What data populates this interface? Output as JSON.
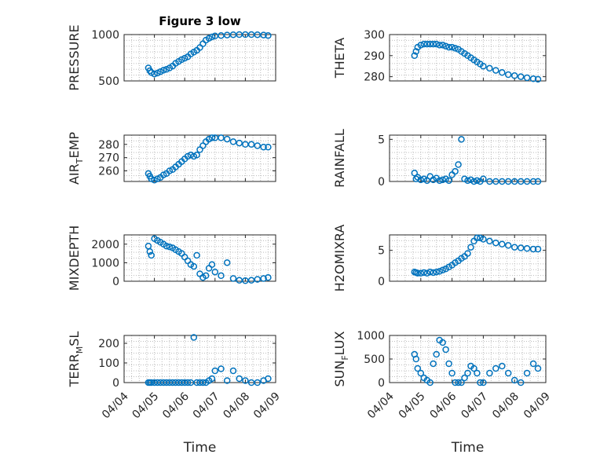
{
  "figure": {
    "title": "Figure 3 low",
    "marker_color": "#0072BD"
  },
  "chart_data": [
    {
      "type": "scatter",
      "title": "Figure 3 low",
      "xlabel": "",
      "ylabel": "PRESSURE",
      "xlim": [
        4,
        9
      ],
      "ylim": [
        500,
        1000
      ],
      "yticks": [
        500,
        1000
      ],
      "x_ticklabels": [],
      "grid": true,
      "x": [
        4.8,
        4.85,
        4.9,
        5.0,
        5.1,
        5.2,
        5.3,
        5.4,
        5.5,
        5.6,
        5.7,
        5.8,
        5.9,
        6.0,
        6.1,
        6.2,
        6.3,
        6.4,
        6.5,
        6.6,
        6.7,
        6.8,
        6.9,
        7.0,
        7.2,
        7.4,
        7.6,
        7.8,
        8.0,
        8.2,
        8.4,
        8.6,
        8.75
      ],
      "y": [
        640,
        610,
        590,
        575,
        585,
        600,
        615,
        625,
        640,
        660,
        690,
        710,
        730,
        745,
        760,
        790,
        810,
        830,
        860,
        900,
        940,
        960,
        975,
        985,
        990,
        995,
        998,
        1000,
        1000,
        1000,
        998,
        995,
        990
      ]
    },
    {
      "type": "scatter",
      "title": "",
      "xlabel": "",
      "ylabel": "THETA",
      "xlim": [
        4,
        9
      ],
      "ylim": [
        278,
        300
      ],
      "yticks": [
        280,
        290,
        300
      ],
      "x_ticklabels": [],
      "grid": true,
      "x": [
        4.8,
        4.85,
        4.9,
        5.0,
        5.1,
        5.2,
        5.3,
        5.4,
        5.5,
        5.6,
        5.7,
        5.8,
        5.9,
        6.0,
        6.1,
        6.2,
        6.3,
        6.4,
        6.5,
        6.6,
        6.7,
        6.8,
        6.9,
        7.0,
        7.2,
        7.4,
        7.6,
        7.8,
        8.0,
        8.2,
        8.4,
        8.6,
        8.75
      ],
      "y": [
        290,
        292,
        294,
        295,
        295.5,
        295.5,
        295.5,
        295.5,
        295.5,
        295,
        295,
        294.5,
        294,
        294,
        293.5,
        293,
        292,
        291,
        290,
        289,
        288,
        287,
        286,
        285,
        284,
        283,
        282,
        281,
        280.5,
        280,
        279.5,
        279,
        278.8
      ]
    },
    {
      "type": "scatter",
      "title": "",
      "xlabel": "",
      "ylabel": "AIR_TEMP",
      "xlim": [
        4,
        9
      ],
      "ylim": [
        252,
        287
      ],
      "yticks": [
        260,
        270,
        280
      ],
      "x_ticklabels": [],
      "grid": true,
      "x": [
        4.8,
        4.85,
        4.9,
        5.0,
        5.1,
        5.2,
        5.3,
        5.4,
        5.5,
        5.6,
        5.7,
        5.8,
        5.9,
        6.0,
        6.1,
        6.2,
        6.3,
        6.4,
        6.5,
        6.6,
        6.7,
        6.8,
        6.9,
        7.0,
        7.2,
        7.4,
        7.6,
        7.8,
        8.0,
        8.2,
        8.4,
        8.6,
        8.75
      ],
      "y": [
        258,
        256,
        254,
        253,
        254,
        255,
        257,
        258,
        260,
        261,
        263,
        265,
        267,
        269,
        271,
        272,
        271,
        272,
        276,
        279,
        282,
        284,
        285,
        285,
        285,
        284,
        282,
        281,
        280,
        280,
        279,
        278,
        278
      ]
    },
    {
      "type": "scatter",
      "title": "",
      "xlabel": "",
      "ylabel": "RAINFALL",
      "xlim": [
        4,
        9
      ],
      "ylim": [
        0,
        5.5
      ],
      "yticks": [
        0,
        5
      ],
      "x_ticklabels": [],
      "grid": true,
      "x": [
        4.8,
        4.85,
        4.9,
        5.0,
        5.1,
        5.2,
        5.3,
        5.4,
        5.5,
        5.6,
        5.7,
        5.8,
        5.9,
        6.0,
        6.1,
        6.2,
        6.3,
        6.4,
        6.5,
        6.6,
        6.7,
        6.8,
        6.9,
        7.0,
        7.2,
        7.4,
        7.6,
        7.8,
        8.0,
        8.2,
        8.4,
        8.6,
        8.75
      ],
      "y": [
        1.0,
        0.3,
        0.5,
        0.2,
        0.3,
        0.1,
        0.6,
        0.2,
        0.4,
        0.1,
        0.2,
        0.3,
        0.1,
        0.8,
        1.2,
        2.0,
        5.0,
        0.3,
        0.1,
        0.2,
        0.0,
        0.1,
        0.0,
        0.3,
        0.0,
        0.0,
        0.0,
        0.0,
        0.0,
        0.0,
        0.0,
        0.0,
        0.0
      ]
    },
    {
      "type": "scatter",
      "title": "",
      "xlabel": "",
      "ylabel": "MIXDEPTH",
      "xlim": [
        4,
        9
      ],
      "ylim": [
        0,
        2500
      ],
      "yticks": [
        0,
        1000,
        2000
      ],
      "x_ticklabels": [],
      "grid": true,
      "x": [
        4.8,
        4.85,
        4.9,
        5.0,
        5.1,
        5.2,
        5.3,
        5.4,
        5.5,
        5.6,
        5.7,
        5.8,
        5.9,
        6.0,
        6.1,
        6.2,
        6.3,
        6.4,
        6.5,
        6.6,
        6.7,
        6.8,
        6.9,
        7.0,
        7.2,
        7.4,
        7.6,
        7.8,
        8.0,
        8.2,
        8.4,
        8.6,
        8.75
      ],
      "y": [
        1900,
        1600,
        1400,
        2300,
        2200,
        2100,
        2000,
        1900,
        1850,
        1800,
        1700,
        1600,
        1500,
        1300,
        1100,
        900,
        800,
        1400,
        400,
        200,
        300,
        700,
        900,
        500,
        300,
        1000,
        150,
        50,
        30,
        50,
        100,
        150,
        200
      ]
    },
    {
      "type": "scatter",
      "title": "",
      "xlabel": "",
      "ylabel": "H2OMIXRA",
      "xlim": [
        4,
        9
      ],
      "ylim": [
        0,
        7.5
      ],
      "yticks": [
        0,
        5
      ],
      "x_ticklabels": [],
      "grid": true,
      "x": [
        4.8,
        4.85,
        4.9,
        5.0,
        5.1,
        5.2,
        5.3,
        5.4,
        5.5,
        5.6,
        5.7,
        5.8,
        5.9,
        6.0,
        6.1,
        6.2,
        6.3,
        6.4,
        6.5,
        6.6,
        6.7,
        6.8,
        6.9,
        7.0,
        7.2,
        7.4,
        7.6,
        7.8,
        8.0,
        8.2,
        8.4,
        8.6,
        8.75
      ],
      "y": [
        1.5,
        1.4,
        1.3,
        1.3,
        1.4,
        1.3,
        1.5,
        1.4,
        1.5,
        1.6,
        1.8,
        2.0,
        2.3,
        2.6,
        3.0,
        3.3,
        3.7,
        4.0,
        4.5,
        5.5,
        6.5,
        7.0,
        7.0,
        6.8,
        6.5,
        6.2,
        6.0,
        5.8,
        5.5,
        5.4,
        5.3,
        5.2,
        5.2
      ]
    },
    {
      "type": "scatter",
      "title": "",
      "xlabel": "Time",
      "ylabel": "TERR_MSL",
      "xlim": [
        4,
        9
      ],
      "ylim": [
        0,
        240
      ],
      "yticks": [
        0,
        100,
        200
      ],
      "x_ticklabels": [
        "04/04",
        "04/05",
        "04/06",
        "04/07",
        "04/08",
        "04/09"
      ],
      "grid": true,
      "x": [
        4.8,
        4.85,
        4.9,
        5.0,
        5.1,
        5.2,
        5.3,
        5.4,
        5.5,
        5.6,
        5.7,
        5.8,
        5.9,
        6.0,
        6.1,
        6.2,
        6.3,
        6.4,
        6.5,
        6.6,
        6.7,
        6.8,
        6.9,
        7.0,
        7.2,
        7.4,
        7.6,
        7.8,
        8.0,
        8.2,
        8.4,
        8.6,
        8.75
      ],
      "y": [
        0,
        0,
        0,
        0,
        0,
        0,
        0,
        0,
        0,
        0,
        0,
        0,
        0,
        0,
        0,
        0,
        230,
        0,
        0,
        0,
        0,
        10,
        20,
        60,
        70,
        10,
        60,
        20,
        10,
        0,
        0,
        10,
        20
      ]
    },
    {
      "type": "scatter",
      "title": "",
      "xlabel": "Time",
      "ylabel": "SUN_FLUX",
      "xlim": [
        4,
        9
      ],
      "ylim": [
        0,
        1000
      ],
      "yticks": [
        0,
        500,
        1000
      ],
      "x_ticklabels": [
        "04/04",
        "04/05",
        "04/06",
        "04/07",
        "04/08",
        "04/09"
      ],
      "grid": true,
      "x": [
        4.8,
        4.85,
        4.9,
        5.0,
        5.1,
        5.2,
        5.3,
        5.4,
        5.5,
        5.6,
        5.7,
        5.8,
        5.9,
        6.0,
        6.1,
        6.2,
        6.3,
        6.4,
        6.5,
        6.6,
        6.7,
        6.8,
        6.9,
        7.0,
        7.2,
        7.4,
        7.6,
        7.8,
        8.0,
        8.2,
        8.4,
        8.6,
        8.75
      ],
      "y": [
        600,
        500,
        300,
        200,
        100,
        50,
        0,
        400,
        600,
        900,
        850,
        700,
        400,
        200,
        0,
        0,
        0,
        100,
        200,
        350,
        300,
        200,
        0,
        0,
        200,
        300,
        350,
        200,
        50,
        0,
        200,
        400,
        300
      ]
    }
  ]
}
